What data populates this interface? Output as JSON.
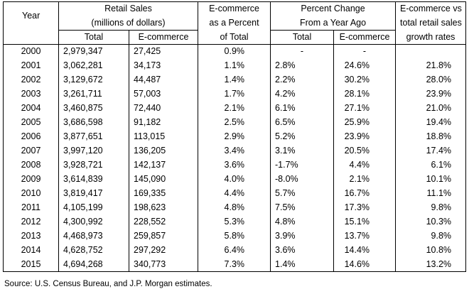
{
  "header": {
    "year": "Year",
    "retail_sales": "Retail Sales",
    "retail_sales_units": "(millions of dollars)",
    "total": "Total",
    "ecommerce": "E-commerce",
    "ecom_pct_line1": "E-commerce",
    "ecom_pct_line2": "as a Percent",
    "ecom_pct_line3": "of Total",
    "pct_change_line1": "Percent Change",
    "pct_change_line2": "From a Year Ago",
    "chg_total": "Total",
    "chg_ecommerce": "E-commerce",
    "growth_line1": "E-commerce vs",
    "growth_line2": "total retail sales",
    "growth_line3": "growth rates"
  },
  "rows": [
    {
      "year": "2000",
      "total": "2,979,347",
      "ecom": "27,425",
      "pct": "0.9%",
      "chg_total": "-",
      "chg_ecom": "-",
      "gap": ""
    },
    {
      "year": "2001",
      "total": "3,062,281",
      "ecom": "34,173",
      "pct": "1.1%",
      "chg_total": "2.8%",
      "chg_ecom": "24.6%",
      "gap": "21.8%"
    },
    {
      "year": "2002",
      "total": "3,129,672",
      "ecom": "44,487",
      "pct": "1.4%",
      "chg_total": "2.2%",
      "chg_ecom": "30.2%",
      "gap": "28.0%"
    },
    {
      "year": "2003",
      "total": "3,261,711",
      "ecom": "57,003",
      "pct": "1.7%",
      "chg_total": "4.2%",
      "chg_ecom": "28.1%",
      "gap": "23.9%"
    },
    {
      "year": "2004",
      "total": "3,460,875",
      "ecom": "72,440",
      "pct": "2.1%",
      "chg_total": "6.1%",
      "chg_ecom": "27.1%",
      "gap": "21.0%"
    },
    {
      "year": "2005",
      "total": "3,686,598",
      "ecom": "91,182",
      "pct": "2.5%",
      "chg_total": "6.5%",
      "chg_ecom": "25.9%",
      "gap": "19.4%"
    },
    {
      "year": "2006",
      "total": "3,877,651",
      "ecom": "113,015",
      "pct": "2.9%",
      "chg_total": "5.2%",
      "chg_ecom": "23.9%",
      "gap": "18.8%"
    },
    {
      "year": "2007",
      "total": "3,997,120",
      "ecom": "136,205",
      "pct": "3.4%",
      "chg_total": "3.1%",
      "chg_ecom": "20.5%",
      "gap": "17.4%"
    },
    {
      "year": "2008",
      "total": "3,928,721",
      "ecom": "142,137",
      "pct": "3.6%",
      "chg_total": "-1.7%",
      "chg_ecom": "4.4%",
      "gap": "6.1%"
    },
    {
      "year": "2009",
      "total": "3,614,839",
      "ecom": "145,090",
      "pct": "4.0%",
      "chg_total": "-8.0%",
      "chg_ecom": "2.1%",
      "gap": "10.1%"
    },
    {
      "year": "2010",
      "total": "3,819,417",
      "ecom": "169,335",
      "pct": "4.4%",
      "chg_total": "5.7%",
      "chg_ecom": "16.7%",
      "gap": "11.1%"
    },
    {
      "year": "2011",
      "total": "4,105,199",
      "ecom": "198,623",
      "pct": "4.8%",
      "chg_total": "7.5%",
      "chg_ecom": "17.3%",
      "gap": "9.8%"
    },
    {
      "year": "2012",
      "total": "4,300,992",
      "ecom": "228,552",
      "pct": "5.3%",
      "chg_total": "4.8%",
      "chg_ecom": "15.1%",
      "gap": "10.3%"
    },
    {
      "year": "2013",
      "total": "4,468,973",
      "ecom": "259,857",
      "pct": "5.8%",
      "chg_total": "3.9%",
      "chg_ecom": "13.7%",
      "gap": "9.8%"
    },
    {
      "year": "2014",
      "total": "4,628,752",
      "ecom": "297,292",
      "pct": "6.4%",
      "chg_total": "3.6%",
      "chg_ecom": "14.4%",
      "gap": "10.8%"
    },
    {
      "year": "2015",
      "total": "4,694,268",
      "ecom": "340,773",
      "pct": "7.3%",
      "chg_total": "1.4%",
      "chg_ecom": "14.6%",
      "gap": "13.2%"
    }
  ],
  "source": "Source:  U.S.  Census Bureau, and J.P. Morgan estimates."
}
